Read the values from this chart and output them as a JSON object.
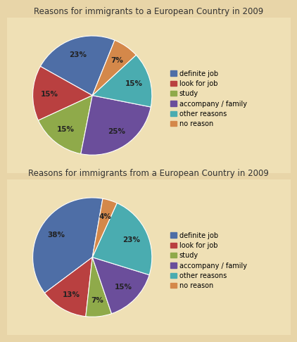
{
  "chart1": {
    "title": "Reasons for immigrants to a European Country in 2009",
    "labels": [
      "definite job",
      "look for job",
      "study",
      "accompany / family",
      "other reasons",
      "no reason"
    ],
    "values": [
      23,
      15,
      15,
      25,
      15,
      7
    ],
    "colors": [
      "#4E6EA6",
      "#B94040",
      "#8FAA4A",
      "#6B4E9B",
      "#4AACB0",
      "#D4884A"
    ],
    "startangle": 68
  },
  "chart2": {
    "title": "Reasons for immigrants from a European Country in 2009",
    "labels": [
      "definite job",
      "look for job",
      "study",
      "accompany / family",
      "other reasons",
      "no reason"
    ],
    "values": [
      38,
      13,
      7,
      15,
      23,
      4
    ],
    "colors": [
      "#4E6EA6",
      "#B94040",
      "#8FAA4A",
      "#6B4E9B",
      "#4AACB0",
      "#D4884A"
    ],
    "startangle": 80
  },
  "fig_bg": "#E8D5A8",
  "panel_bg": "#EFE0B5",
  "title_fontsize": 8.5,
  "pct_fontsize": 7.5,
  "legend_fontsize": 7.0
}
